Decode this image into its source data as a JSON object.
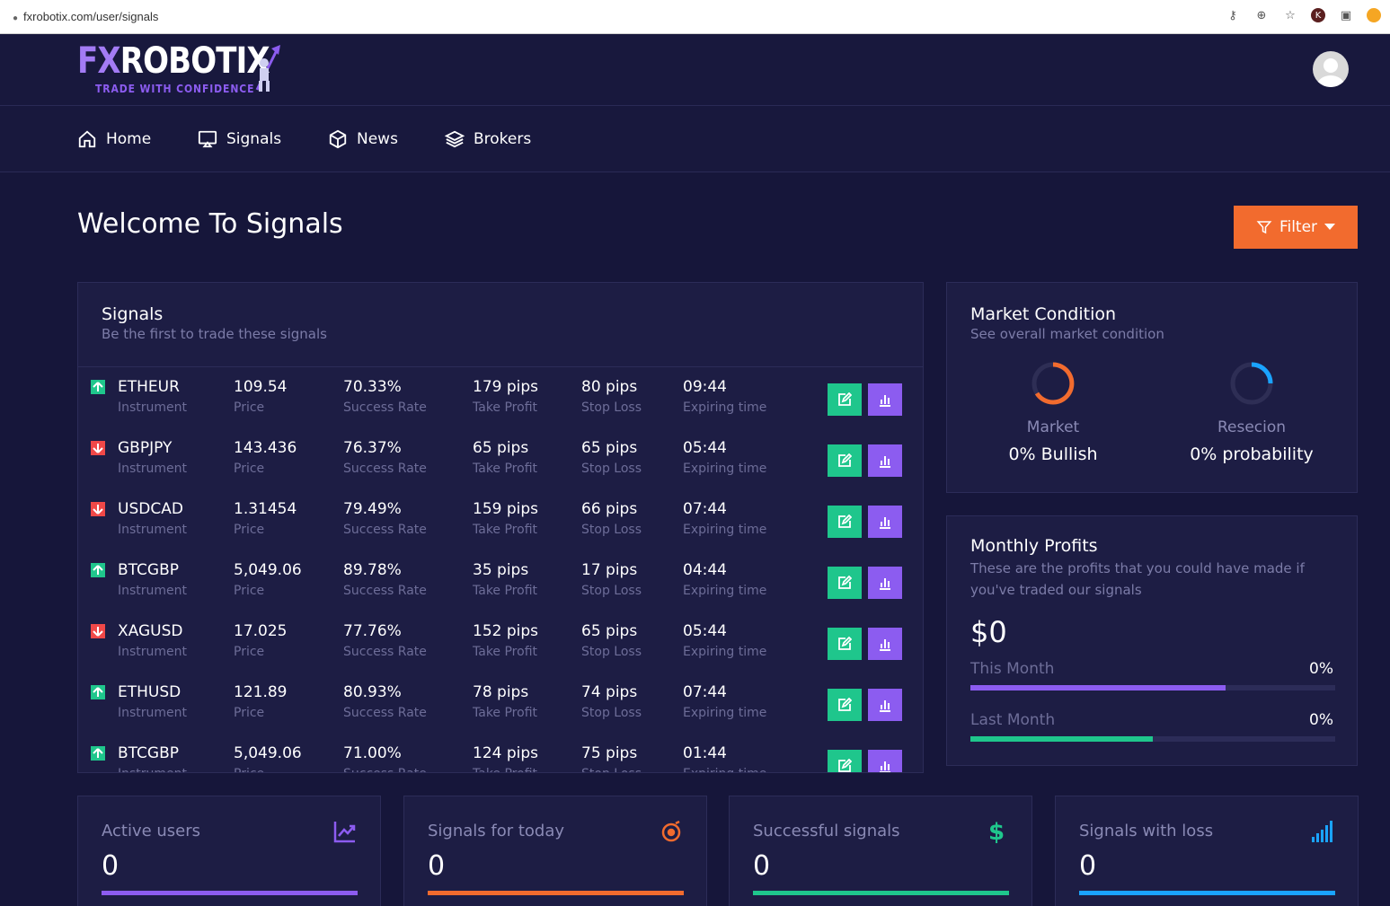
{
  "browser": {
    "url": "fxrobotix.com/user/signals"
  },
  "brand": {
    "name_fx": "FX",
    "name_robotix": "ROBOTIX",
    "tagline": "TRADE WITH CONFIDENCE",
    "accent": "#8c5cf0"
  },
  "nav": {
    "items": [
      {
        "label": "Home",
        "icon": "home-icon"
      },
      {
        "label": "Signals",
        "icon": "monitor-icon"
      },
      {
        "label": "News",
        "icon": "box-icon"
      },
      {
        "label": "Brokers",
        "icon": "layers-icon"
      }
    ]
  },
  "page": {
    "title": "Welcome To Signals",
    "filter_label": "Filter"
  },
  "signals": {
    "title": "Signals",
    "subtitle": "Be the first to trade these signals",
    "labels": {
      "instrument": "Instrument",
      "price": "Price",
      "success": "Success Rate",
      "take_profit": "Take Profit",
      "stop_loss": "Stop Loss",
      "expiring": "Expiring time"
    },
    "rows": [
      {
        "direction": "up",
        "instrument": "ETHEUR",
        "price": "109.54",
        "success": "70.33%",
        "take_profit": "179 pips",
        "stop_loss": "80 pips",
        "expiring": "09:44"
      },
      {
        "direction": "down",
        "instrument": "GBPJPY",
        "price": "143.436",
        "success": "76.37%",
        "take_profit": "65 pips",
        "stop_loss": "65 pips",
        "expiring": "05:44"
      },
      {
        "direction": "down",
        "instrument": "USDCAD",
        "price": "1.31454",
        "success": "79.49%",
        "take_profit": "159 pips",
        "stop_loss": "66 pips",
        "expiring": "07:44"
      },
      {
        "direction": "up",
        "instrument": "BTCGBP",
        "price": "5,049.06",
        "success": "89.78%",
        "take_profit": "35 pips",
        "stop_loss": "17 pips",
        "expiring": "04:44"
      },
      {
        "direction": "down",
        "instrument": "XAGUSD",
        "price": "17.025",
        "success": "77.76%",
        "take_profit": "152 pips",
        "stop_loss": "65 pips",
        "expiring": "05:44"
      },
      {
        "direction": "up",
        "instrument": "ETHUSD",
        "price": "121.89",
        "success": "80.93%",
        "take_profit": "78 pips",
        "stop_loss": "74 pips",
        "expiring": "07:44"
      },
      {
        "direction": "up",
        "instrument": "BTCGBP",
        "price": "5,049.06",
        "success": "71.00%",
        "take_profit": "124 pips",
        "stop_loss": "75 pips",
        "expiring": "01:44"
      }
    ]
  },
  "market": {
    "title": "Market Condition",
    "subtitle": "See overall market condition",
    "gauges": [
      {
        "label": "Market",
        "value": "0% Bullish",
        "color": "#f26b2e"
      },
      {
        "label": "Resecion",
        "value": "0% probability",
        "color": "#1aa3ff"
      }
    ]
  },
  "profits": {
    "title": "Monthly Profits",
    "subtitle": "These are the profits that you could have made if you've traded our signals",
    "total": "$0",
    "this_month": {
      "label": "This Month",
      "value": "0%",
      "fill_fraction": 0.7,
      "color": "#8c5cf0"
    },
    "last_month": {
      "label": "Last Month",
      "value": "0%",
      "fill_fraction": 0.5,
      "color": "#1fc68c"
    }
  },
  "stats": [
    {
      "label": "Active users",
      "value": "0",
      "icon": "trend-chart-icon",
      "color": "#8c5cf0"
    },
    {
      "label": "Signals for today",
      "value": "0",
      "icon": "target-icon",
      "color": "#f26b2e"
    },
    {
      "label": "Successful signals",
      "value": "0",
      "icon": "dollar-icon",
      "color": "#1fc68c"
    },
    {
      "label": "Signals with loss",
      "value": "0",
      "icon": "signal-bars-icon",
      "color": "#1aa3ff"
    }
  ]
}
